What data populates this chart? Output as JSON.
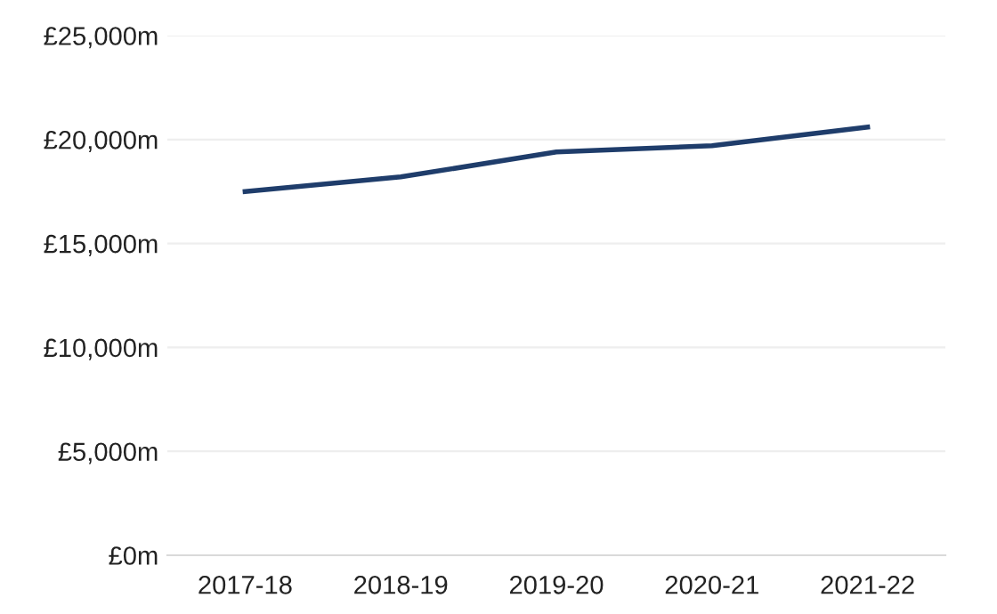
{
  "chart_data": {
    "type": "line",
    "categories": [
      "2017-18",
      "2018-19",
      "2019-20",
      "2020-21",
      "2021-22"
    ],
    "series": [
      {
        "color": "#1f3d6b",
        "values": [
          17500,
          18200,
          19400,
          19700,
          20600
        ]
      }
    ],
    "ylim": [
      0,
      25000
    ],
    "yticks": [
      {
        "value": 0,
        "label": "£0m"
      },
      {
        "value": 5000,
        "label": "£5,000m"
      },
      {
        "value": 10000,
        "label": "£10,000m"
      },
      {
        "value": 15000,
        "label": "£15,000m"
      },
      {
        "value": 20000,
        "label": "£20,000m"
      },
      {
        "value": 25000,
        "label": "£25,000m"
      }
    ],
    "grid": "y",
    "marker": "none",
    "line_style": "solid"
  }
}
